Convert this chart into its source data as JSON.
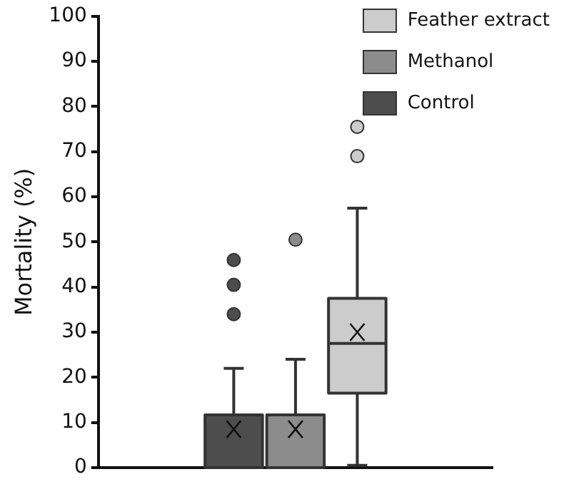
{
  "chart_data": {
    "type": "box",
    "ylabel": "Mortality (%)",
    "categories": [
      null
    ],
    "series": [
      {
        "name": "Control",
        "color": "#4d4d4d",
        "boxes": [
          {
            "low": 0,
            "q1": 0,
            "median": 0,
            "q3": 11.7,
            "high": 22,
            "mean": 8.5,
            "outliers": [
              34,
              40.5,
              46
            ]
          }
        ]
      },
      {
        "name": "Methanol",
        "color": "#8c8c8c",
        "boxes": [
          {
            "low": 0,
            "q1": 0,
            "median": 0,
            "q3": 11.7,
            "high": 24,
            "mean": 8.5,
            "outliers": [
              50.5
            ]
          }
        ]
      },
      {
        "name": "Feather extract",
        "color": "#cccccc",
        "boxes": [
          {
            "low": 0.5,
            "q1": 16.5,
            "median": 27.5,
            "q3": 37.5,
            "high": 57.5,
            "mean": 30,
            "outliers": [
              69,
              75.5
            ]
          }
        ]
      }
    ],
    "ylim": [
      0,
      100
    ],
    "yticks": [
      0,
      10,
      20,
      30,
      40,
      50,
      60,
      70,
      80,
      90,
      100
    ],
    "legend": "top right"
  }
}
